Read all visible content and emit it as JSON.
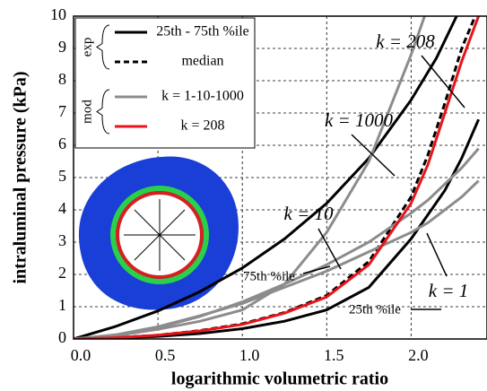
{
  "chart_data": {
    "type": "line",
    "xlabel": "logarithmic volumetric ratio",
    "ylabel": "intraluminal pressure (kPa)",
    "xlim": [
      0,
      2.45
    ],
    "ylim": [
      0,
      10
    ],
    "xticks": [
      {
        "value": 0,
        "label": "0.0"
      },
      0.5,
      {
        "value": 1,
        "label": "1.0"
      },
      1.5,
      {
        "value": 2,
        "label": "2.0"
      }
    ],
    "yticks": [
      0,
      1,
      2,
      3,
      4,
      5,
      6,
      7,
      8,
      9,
      10
    ],
    "grid": true,
    "series": [
      {
        "name": "75th %ile",
        "color": "#000000",
        "dashed": false,
        "x": [
          0,
          0.25,
          0.5,
          0.75,
          1.0,
          1.25,
          1.5,
          1.75,
          2.0,
          2.15,
          2.27
        ],
        "values": [
          0,
          0.39,
          0.87,
          1.47,
          2.2,
          3.1,
          4.2,
          5.6,
          7.4,
          8.7,
          10
        ]
      },
      {
        "name": "25th %ile",
        "color": "#000000",
        "dashed": false,
        "x": [
          0,
          0.25,
          0.5,
          0.75,
          1.0,
          1.25,
          1.5,
          1.75,
          2.0,
          2.2,
          2.3,
          2.4
        ],
        "values": [
          0,
          0.03,
          0.08,
          0.17,
          0.32,
          0.55,
          0.9,
          1.6,
          3.1,
          4.6,
          5.6,
          6.8
        ]
      },
      {
        "color": "#000000",
        "dashed": true,
        "x": [
          0,
          0.25,
          0.5,
          0.75,
          1.0,
          1.25,
          1.5,
          1.75,
          2.0,
          2.1,
          2.2,
          2.3,
          2.38
        ],
        "values": [
          0,
          0.04,
          0.12,
          0.26,
          0.47,
          0.82,
          1.35,
          2.4,
          4.4,
          5.7,
          7.3,
          9.0,
          10
        ]
      },
      {
        "name": "k = 1000",
        "color": "#8c8c8c",
        "dashed": false,
        "x": [
          0,
          0.25,
          0.5,
          0.75,
          1.0,
          1.25,
          1.5,
          1.75,
          2.0,
          2.08
        ],
        "values": [
          0,
          0.1,
          0.3,
          0.55,
          0.9,
          1.7,
          3.3,
          5.5,
          8.8,
          10
        ]
      },
      {
        "name": "k = 10",
        "color": "#8c8c8c",
        "dashed": false,
        "x": [
          0,
          0.25,
          0.5,
          0.75,
          1.0,
          1.25,
          1.5,
          1.75,
          2.0,
          2.1,
          2.2,
          2.3,
          2.4
        ],
        "values": [
          0,
          0.12,
          0.35,
          0.7,
          1.15,
          1.7,
          2.3,
          3.0,
          3.9,
          4.3,
          4.8,
          5.3,
          5.9
        ]
      },
      {
        "name": "k = 1",
        "color": "#8c8c8c",
        "dashed": false,
        "x": [
          0,
          0.25,
          0.5,
          0.75,
          1.0,
          1.25,
          1.5,
          1.75,
          2.0,
          2.1,
          2.2,
          2.3,
          2.4
        ],
        "values": [
          0,
          0.13,
          0.38,
          0.72,
          1.1,
          1.6,
          2.1,
          2.7,
          3.3,
          3.6,
          4.0,
          4.4,
          4.9
        ]
      },
      {
        "name": "k = 208",
        "color": "#e8141a",
        "dashed": false,
        "x": [
          0,
          0.25,
          0.5,
          0.75,
          1.0,
          1.25,
          1.5,
          1.75,
          2.0,
          2.1,
          2.2,
          2.3,
          2.4
        ],
        "values": [
          0,
          0.04,
          0.12,
          0.25,
          0.45,
          0.8,
          1.3,
          2.3,
          4.2,
          5.4,
          7.0,
          8.6,
          10
        ]
      }
    ],
    "legend": {
      "groups": [
        {
          "label": "exp",
          "entries": [
            {
              "label": "25th - 75th %ile",
              "color": "#000000",
              "dashed": false
            },
            {
              "label": "median",
              "color": "#000000",
              "dashed": true
            }
          ]
        },
        {
          "label": "mod",
          "entries": [
            {
              "label": "k = 1-10-1000",
              "color": "#8c8c8c",
              "dashed": false
            },
            {
              "label": "k = 208",
              "color": "#e8141a",
              "dashed": false
            }
          ]
        }
      ]
    }
  }
}
